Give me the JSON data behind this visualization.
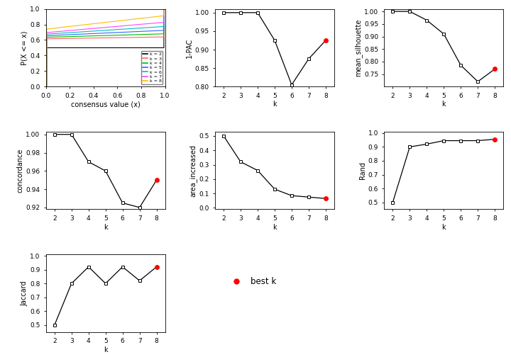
{
  "k_values": [
    2,
    3,
    4,
    5,
    6,
    7,
    8
  ],
  "pac_1minus": [
    1.0,
    1.0,
    1.0,
    0.925,
    0.805,
    0.875,
    0.925
  ],
  "mean_silhouette": [
    1.0,
    1.0,
    0.965,
    0.91,
    0.785,
    0.72,
    0.77
  ],
  "concordance": [
    1.0,
    1.0,
    0.97,
    0.96,
    0.925,
    0.92,
    0.95
  ],
  "area_increased": [
    0.5,
    0.32,
    0.26,
    0.13,
    0.085,
    0.075,
    0.065
  ],
  "rand": [
    0.5,
    0.9,
    0.92,
    0.945,
    0.945,
    0.945,
    0.955
  ],
  "jaccard": [
    0.5,
    0.8,
    0.92,
    0.8,
    0.92,
    0.82,
    0.92
  ],
  "best_k": 8,
  "bg_color": "#FFFFFF",
  "ecdf_colors": [
    "#000000",
    "#FF6666",
    "#00BB00",
    "#3366FF",
    "#00BBBB",
    "#FF44FF",
    "#FFBB00"
  ],
  "ecdf_starts": [
    0.5,
    0.615,
    0.635,
    0.655,
    0.675,
    0.695,
    0.74
  ],
  "ecdf_slopes": [
    0.0,
    0.025,
    0.045,
    0.07,
    0.1,
    0.135,
    0.175
  ]
}
